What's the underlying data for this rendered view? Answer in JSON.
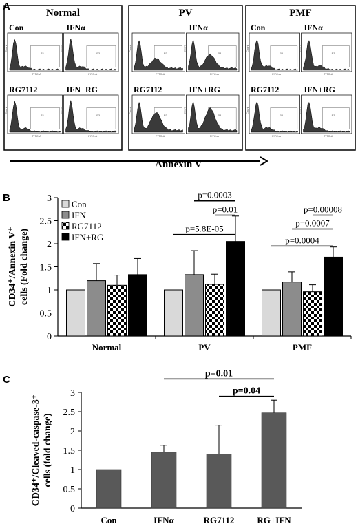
{
  "panel_a": {
    "letter": "A",
    "axis_label": "Annexin V",
    "groups": [
      {
        "title": "Normal",
        "conditions": [
          "Con",
          "IFNα",
          "RG7112",
          "IFN+RG"
        ]
      },
      {
        "title": "PV",
        "conditions": [
          "",
          "IFNα",
          "RG7112",
          "IFN+RG"
        ]
      },
      {
        "title": "PMF",
        "conditions": [
          "Con",
          "IFNα",
          "RG7112",
          "IFN+RG"
        ]
      }
    ],
    "axis_tick_text": "FITC-A",
    "count_text": "Count",
    "gate_text": "P3"
  },
  "chart_data": [
    {
      "type": "bar",
      "panel": "B",
      "categories": [
        "Normal",
        "PV",
        "PMF"
      ],
      "series": [
        {
          "name": "Con",
          "values": [
            1,
            1,
            1
          ],
          "errors": [
            0,
            0,
            0
          ],
          "fill": "#d9d9d9",
          "pattern": "none"
        },
        {
          "name": "IFN",
          "values": [
            1.2,
            1.33,
            1.17
          ],
          "errors": [
            0.37,
            0.52,
            0.22
          ],
          "fill": "#8c8c8c",
          "pattern": "none"
        },
        {
          "name": "RG7112",
          "values": [
            1.1,
            1.12,
            0.96
          ],
          "errors": [
            0.22,
            0.22,
            0.15
          ],
          "fill": "#ffffff",
          "pattern": "checker"
        },
        {
          "name": "IFN+RG",
          "values": [
            1.33,
            2.05,
            1.71
          ],
          "errors": [
            0.35,
            0.55,
            0.22
          ],
          "fill": "#000000",
          "pattern": "none"
        }
      ],
      "ylabel": "CD34⁺/Annexin V⁺ cells (Fold change)",
      "ylim": [
        0,
        3
      ],
      "yticks": [
        "0",
        "0.5",
        "1",
        "1.5",
        "2",
        "2.5",
        "3"
      ],
      "legend_position": "top-left",
      "annotations": [
        {
          "text": "p=0.0003",
          "category": "PV",
          "from": 1,
          "to": 3,
          "level": 2.93
        },
        {
          "text": "p=0.01",
          "category": "PV",
          "from": 2,
          "to": 3,
          "level": 2.62
        },
        {
          "text": "p=5.8E-05",
          "category": "PV",
          "from": 0,
          "to": 3,
          "level": 2.2
        },
        {
          "text": "p=0.00008",
          "category": "PMF",
          "from": 2,
          "to": 3,
          "level": 2.62
        },
        {
          "text": "p=0.0007",
          "category": "PMF",
          "from": 1,
          "to": 3,
          "level": 2.32
        },
        {
          "text": "p=0.0004",
          "category": "PMF",
          "from": 0,
          "to": 3,
          "level": 1.95
        }
      ]
    },
    {
      "type": "bar",
      "panel": "C",
      "categories": [
        "Con",
        "IFNα",
        "RG7112",
        "RG+IFN"
      ],
      "values": [
        1.0,
        1.45,
        1.4,
        2.47
      ],
      "errors": [
        0,
        0.18,
        0.75,
        0.33
      ],
      "fill": "#595959",
      "ylabel": "CD34⁺/Cleaved-caspase-3⁺ cells (fold change)",
      "ylim": [
        0,
        3
      ],
      "yticks": [
        "0",
        "0.5",
        "1",
        "1.5",
        "2",
        "2.5",
        "3"
      ],
      "annotations": [
        {
          "text": "p=0.01",
          "from": 1,
          "to": 3,
          "level": 3.35
        },
        {
          "text": "p=0.04",
          "from": 2,
          "to": 3,
          "level": 2.9
        }
      ]
    }
  ],
  "panel_b_letter": "B",
  "panel_c_letter": "C"
}
